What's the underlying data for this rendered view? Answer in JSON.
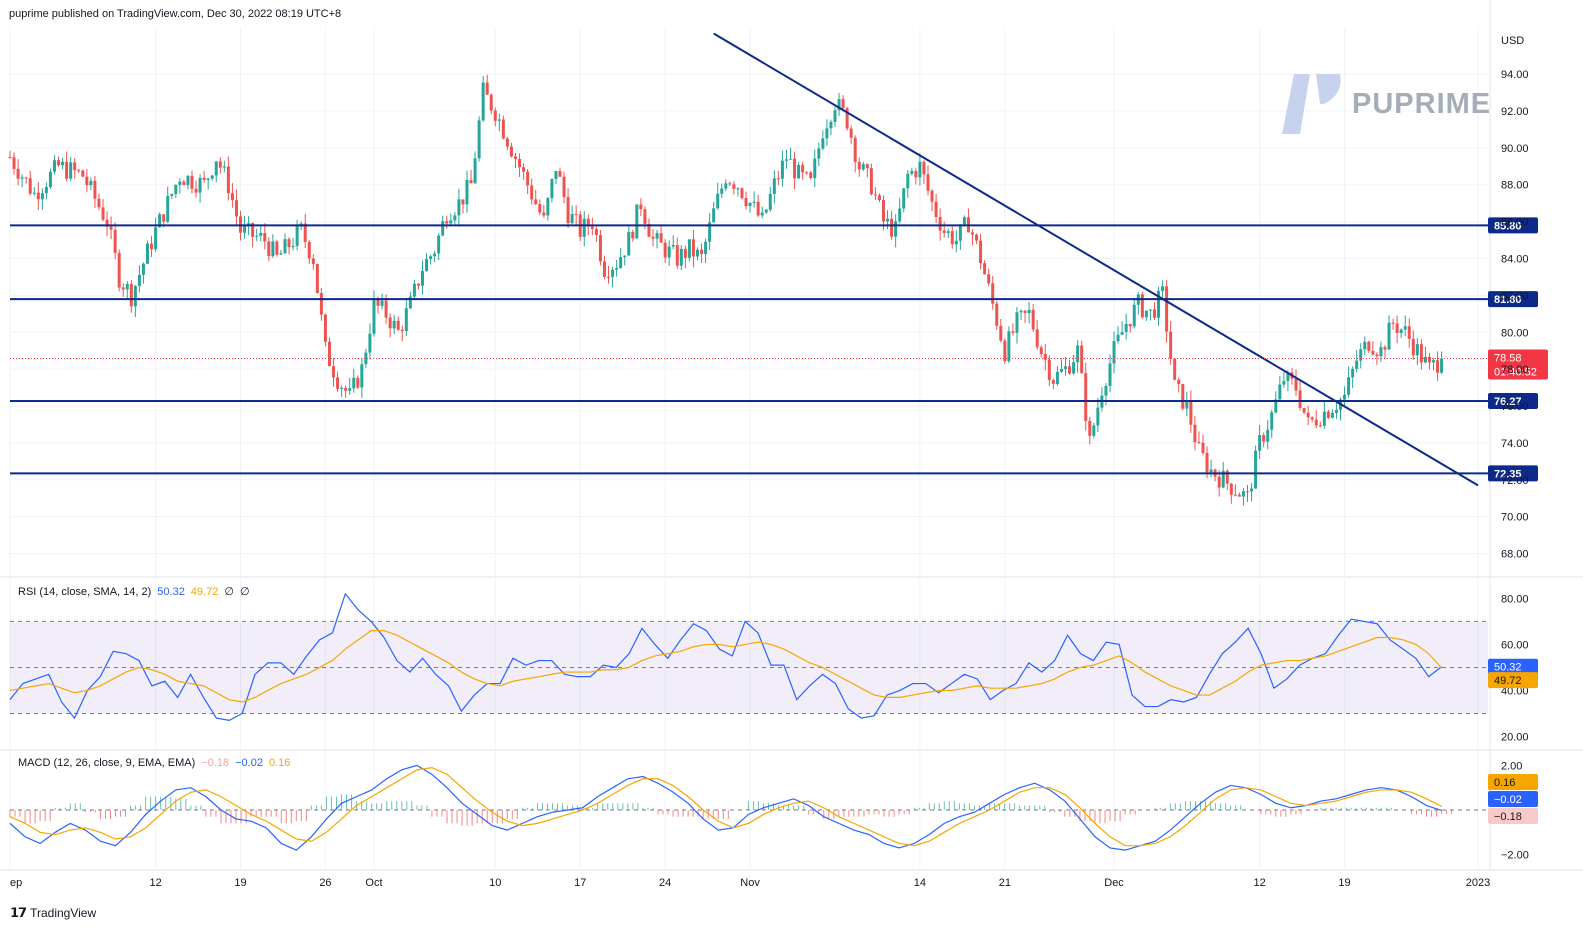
{
  "header": {
    "publish_text": "puprime published on TradingView.com, Dec 30, 2022 08:19 UTC+8"
  },
  "brand": {
    "footer_logo_text": "TradingView",
    "watermark_text": "PUPRIME"
  },
  "colors": {
    "up": "#26a69a",
    "down": "#ef5350",
    "line": "#0d2a8a",
    "rsi": "#2962ff",
    "signal": "#f7a600",
    "last_price": "#f23645"
  },
  "chart_data": [
    {
      "type": "candlestick",
      "title": "",
      "ylabel": "USD",
      "ylim": [
        67.0,
        96.5
      ],
      "y_ticks": [
        "68.00",
        "70.00",
        "72.00",
        "74.00",
        "76.00",
        "78.00",
        "80.00",
        "82.00",
        "84.00",
        "86.00",
        "88.00",
        "90.00",
        "92.00",
        "94.00"
      ],
      "x_ticks": [
        "ep",
        "12",
        "19",
        "26",
        "Oct",
        "10",
        "17",
        "24",
        "Nov",
        "14",
        "21",
        "Dec",
        "12",
        "19",
        "2023"
      ],
      "anchors": [
        {
          "d": 0,
          "p": 89.5
        },
        {
          "d": 2,
          "p": 87.5
        },
        {
          "d": 4,
          "p": 89.0
        },
        {
          "d": 6,
          "p": 88.5
        },
        {
          "d": 8,
          "p": 86.0
        },
        {
          "d": 9,
          "p": 83.0
        },
        {
          "d": 10,
          "p": 82.0
        },
        {
          "d": 12,
          "p": 85.5
        },
        {
          "d": 14,
          "p": 88.5
        },
        {
          "d": 16,
          "p": 88.0
        },
        {
          "d": 17,
          "p": 89.5
        },
        {
          "d": 18,
          "p": 88.0
        },
        {
          "d": 19,
          "p": 85.5
        },
        {
          "d": 21,
          "p": 85.0
        },
        {
          "d": 22,
          "p": 84.0
        },
        {
          "d": 24,
          "p": 85.5
        },
        {
          "d": 25,
          "p": 84.0
        },
        {
          "d": 26,
          "p": 79.0
        },
        {
          "d": 27,
          "p": 77.5
        },
        {
          "d": 28,
          "p": 76.5
        },
        {
          "d": 29,
          "p": 78.0
        },
        {
          "d": 30,
          "p": 81.5
        },
        {
          "d": 31,
          "p": 81.0
        },
        {
          "d": 32,
          "p": 80.0
        },
        {
          "d": 33,
          "p": 81.5
        },
        {
          "d": 34,
          "p": 83.5
        },
        {
          "d": 35,
          "p": 84.5
        },
        {
          "d": 36,
          "p": 86.5
        },
        {
          "d": 37,
          "p": 87.0
        },
        {
          "d": 38,
          "p": 88.0
        },
        {
          "d": 39,
          "p": 93.0
        },
        {
          "d": 40,
          "p": 92.0
        },
        {
          "d": 41,
          "p": 90.5
        },
        {
          "d": 42,
          "p": 89.0
        },
        {
          "d": 43,
          "p": 87.5
        },
        {
          "d": 44,
          "p": 86.0
        },
        {
          "d": 45,
          "p": 89.0
        },
        {
          "d": 46,
          "p": 86.5
        },
        {
          "d": 47,
          "p": 85.5
        },
        {
          "d": 48,
          "p": 86.0
        },
        {
          "d": 49,
          "p": 83.5
        },
        {
          "d": 50,
          "p": 83.8
        },
        {
          "d": 51,
          "p": 85.0
        },
        {
          "d": 52,
          "p": 87.0
        },
        {
          "d": 53,
          "p": 85.0
        },
        {
          "d": 54,
          "p": 84.5
        },
        {
          "d": 55,
          "p": 84.0
        },
        {
          "d": 56,
          "p": 84.5
        },
        {
          "d": 57,
          "p": 84.0
        },
        {
          "d": 58,
          "p": 86.5
        },
        {
          "d": 59,
          "p": 88.5
        },
        {
          "d": 60,
          "p": 88.0
        },
        {
          "d": 61,
          "p": 87.0
        },
        {
          "d": 62,
          "p": 86.0
        },
        {
          "d": 63,
          "p": 88.0
        },
        {
          "d": 64,
          "p": 89.5
        },
        {
          "d": 65,
          "p": 88.5
        },
        {
          "d": 66,
          "p": 88.0
        },
        {
          "d": 67,
          "p": 91.0
        },
        {
          "d": 68,
          "p": 92.5
        },
        {
          "d": 69,
          "p": 91.5
        },
        {
          "d": 70,
          "p": 89.0
        },
        {
          "d": 71,
          "p": 88.0
        },
        {
          "d": 72,
          "p": 86.0
        },
        {
          "d": 73,
          "p": 85.5
        },
        {
          "d": 74,
          "p": 88.5
        },
        {
          "d": 75,
          "p": 89.0
        },
        {
          "d": 76,
          "p": 87.0
        },
        {
          "d": 77,
          "p": 85.5
        },
        {
          "d": 78,
          "p": 85.0
        },
        {
          "d": 79,
          "p": 86.0
        },
        {
          "d": 80,
          "p": 84.0
        },
        {
          "d": 81,
          "p": 81.5
        },
        {
          "d": 82,
          "p": 79.0
        },
        {
          "d": 83,
          "p": 80.5
        },
        {
          "d": 84,
          "p": 81.0
        },
        {
          "d": 85,
          "p": 79.0
        },
        {
          "d": 86,
          "p": 77.5
        },
        {
          "d": 87,
          "p": 78.0
        },
        {
          "d": 88,
          "p": 79.0
        },
        {
          "d": 89,
          "p": 74.0
        },
        {
          "d": 90,
          "p": 77.0
        },
        {
          "d": 91,
          "p": 79.0
        },
        {
          "d": 92,
          "p": 80.5
        },
        {
          "d": 93,
          "p": 81.5
        },
        {
          "d": 94,
          "p": 81.0
        },
        {
          "d": 95,
          "p": 82.0
        },
        {
          "d": 96,
          "p": 77.0
        },
        {
          "d": 97,
          "p": 76.0
        },
        {
          "d": 98,
          "p": 73.5
        },
        {
          "d": 99,
          "p": 72.5
        },
        {
          "d": 100,
          "p": 72.0
        },
        {
          "d": 101,
          "p": 71.5
        },
        {
          "d": 102,
          "p": 71.0
        },
        {
          "d": 103,
          "p": 74.0
        },
        {
          "d": 104,
          "p": 75.5
        },
        {
          "d": 105,
          "p": 77.5
        },
        {
          "d": 106,
          "p": 77.0
        },
        {
          "d": 107,
          "p": 75.0
        },
        {
          "d": 108,
          "p": 75.5
        },
        {
          "d": 109,
          "p": 76.0
        },
        {
          "d": 110,
          "p": 76.5
        },
        {
          "d": 111,
          "p": 78.5
        },
        {
          "d": 112,
          "p": 79.5
        },
        {
          "d": 113,
          "p": 79.0
        },
        {
          "d": 114,
          "p": 80.5
        },
        {
          "d": 115,
          "p": 80.0
        },
        {
          "d": 116,
          "p": 79.0
        },
        {
          "d": 117,
          "p": 78.0
        },
        {
          "d": 118,
          "p": 78.58
        }
      ],
      "horizontal_levels": [
        {
          "value": 85.8,
          "label": "85.80"
        },
        {
          "value": 81.8,
          "label": "81.80"
        },
        {
          "value": 76.27,
          "label": "76.27"
        },
        {
          "value": 72.35,
          "label": "72.35"
        }
      ],
      "trendline": {
        "from": {
          "d": 58,
          "p": 96.2
        },
        "to": {
          "d": 121,
          "p": 71.7
        }
      },
      "last_price": {
        "value": 78.58,
        "label": "78.58",
        "countdown": "01:40:52"
      }
    },
    {
      "type": "line",
      "title": "",
      "label_text": "RSI (14, close, SMA, 14, 2)",
      "current_rsi": "50.32",
      "current_sma": "49.72",
      "extra_flags": [
        "∅",
        "∅"
      ],
      "ylim": [
        15,
        88
      ],
      "y_ticks": [
        "20.00",
        "40.00",
        "60.00",
        "80.00"
      ],
      "band": [
        30,
        70
      ],
      "series": [
        {
          "name": "RSI",
          "values": [
            36,
            43,
            45,
            47,
            35,
            28,
            40,
            46,
            57,
            56,
            53,
            42,
            44,
            37,
            47,
            37,
            28,
            27,
            30,
            47,
            52,
            52,
            47,
            55,
            62,
            65,
            82,
            75,
            70,
            63,
            53,
            48,
            54,
            47,
            42,
            31,
            38,
            43,
            43,
            54,
            51,
            53,
            53,
            47,
            46,
            46,
            51,
            50,
            56,
            67,
            60,
            54,
            62,
            69,
            66,
            58,
            55,
            70,
            65,
            51,
            51,
            36,
            42,
            47,
            43,
            32,
            28,
            29,
            38,
            40,
            43,
            43,
            39,
            43,
            47,
            45,
            36,
            40,
            43,
            52,
            48,
            53,
            64,
            56,
            53,
            61,
            60,
            38,
            33,
            33,
            36,
            35,
            37,
            47,
            56,
            61,
            67,
            56,
            41,
            45,
            51,
            54,
            56,
            64,
            71,
            70,
            69,
            62,
            58,
            54,
            46,
            50.32
          ]
        },
        {
          "name": "SMA",
          "values": [
            40,
            41,
            42,
            43,
            41,
            39,
            40,
            42,
            45,
            48,
            50,
            49,
            47,
            44,
            43,
            42,
            39,
            36,
            35,
            37,
            40,
            43,
            45,
            47,
            50,
            53,
            58,
            62,
            66,
            66,
            64,
            61,
            58,
            55,
            52,
            48,
            45,
            43,
            42,
            44,
            45,
            46,
            47,
            48,
            48,
            48,
            49,
            49,
            50,
            53,
            55,
            56,
            57,
            59,
            60,
            60,
            59,
            60,
            61,
            60,
            58,
            55,
            52,
            50,
            47,
            44,
            41,
            38,
            37,
            37,
            38,
            39,
            40,
            40,
            41,
            42,
            41,
            41,
            41,
            42,
            43,
            45,
            48,
            50,
            51,
            53,
            55,
            52,
            48,
            45,
            42,
            40,
            38,
            38,
            41,
            44,
            48,
            51,
            52,
            53,
            53,
            54,
            55,
            57,
            59,
            61,
            63,
            63,
            62,
            60,
            56,
            49.72
          ]
        }
      ],
      "axis_labels": {
        "rsi": "50.32",
        "sma": "49.72"
      }
    },
    {
      "type": "line",
      "title": "",
      "label_text": "MACD (12, 26, close, 9, EMA, EMA)",
      "current_hist": "−0.18",
      "current_macd": "−0.02",
      "current_signal": "0.16",
      "ylim": [
        -2.6,
        2.6
      ],
      "y_ticks": [
        "2.00",
        "−2.00"
      ],
      "series": [
        {
          "name": "MACD",
          "values": [
            -0.6,
            -1.2,
            -1.5,
            -1.0,
            -0.6,
            -0.9,
            -1.4,
            -1.6,
            -1.0,
            -0.2,
            0.4,
            0.9,
            1.0,
            0.6,
            0.0,
            -0.4,
            -0.5,
            -0.8,
            -1.5,
            -1.8,
            -1.2,
            -0.4,
            0.3,
            0.6,
            0.9,
            1.4,
            1.8,
            2.0,
            1.6,
            1.0,
            0.3,
            -0.2,
            -0.7,
            -0.9,
            -0.6,
            -0.3,
            -0.1,
            0.0,
            0.1,
            0.6,
            1.0,
            1.4,
            1.5,
            1.2,
            0.8,
            0.3,
            -0.4,
            -0.9,
            -0.8,
            -0.2,
            0.1,
            0.3,
            0.5,
            0.2,
            -0.3,
            -0.6,
            -0.9,
            -1.1,
            -1.5,
            -1.7,
            -1.5,
            -1.1,
            -0.6,
            -0.3,
            -0.1,
            0.3,
            0.7,
            1.0,
            1.2,
            0.9,
            0.4,
            -0.4,
            -1.2,
            -1.7,
            -1.8,
            -1.6,
            -1.4,
            -0.9,
            -0.3,
            0.3,
            0.8,
            1.1,
            1.0,
            0.7,
            0.3,
            0.1,
            0.2,
            0.4,
            0.5,
            0.7,
            0.9,
            1.0,
            0.9,
            0.6,
            0.2,
            -0.02
          ]
        },
        {
          "name": "Signal",
          "values": [
            -0.3,
            -0.6,
            -1.0,
            -1.1,
            -0.9,
            -0.8,
            -1.0,
            -1.3,
            -1.2,
            -0.8,
            -0.2,
            0.4,
            0.8,
            0.9,
            0.6,
            0.2,
            -0.2,
            -0.5,
            -0.9,
            -1.3,
            -1.4,
            -1.0,
            -0.4,
            0.2,
            0.6,
            1.0,
            1.4,
            1.8,
            1.9,
            1.6,
            1.0,
            0.4,
            -0.1,
            -0.5,
            -0.7,
            -0.6,
            -0.4,
            -0.2,
            0.0,
            0.3,
            0.7,
            1.1,
            1.4,
            1.4,
            1.1,
            0.6,
            0.0,
            -0.5,
            -0.8,
            -0.6,
            -0.2,
            0.1,
            0.3,
            0.4,
            0.1,
            -0.3,
            -0.6,
            -0.9,
            -1.2,
            -1.5,
            -1.6,
            -1.4,
            -1.0,
            -0.6,
            -0.3,
            0.0,
            0.4,
            0.8,
            1.0,
            1.0,
            0.7,
            0.1,
            -0.6,
            -1.2,
            -1.6,
            -1.6,
            -1.5,
            -1.2,
            -0.7,
            -0.1,
            0.5,
            0.9,
            1.0,
            0.9,
            0.6,
            0.3,
            0.2,
            0.3,
            0.4,
            0.6,
            0.8,
            0.9,
            0.9,
            0.8,
            0.5,
            0.16
          ]
        }
      ],
      "axis_labels": {
        "signal": "0.16",
        "macd": "−0.02",
        "hist": "−0.18"
      }
    }
  ]
}
